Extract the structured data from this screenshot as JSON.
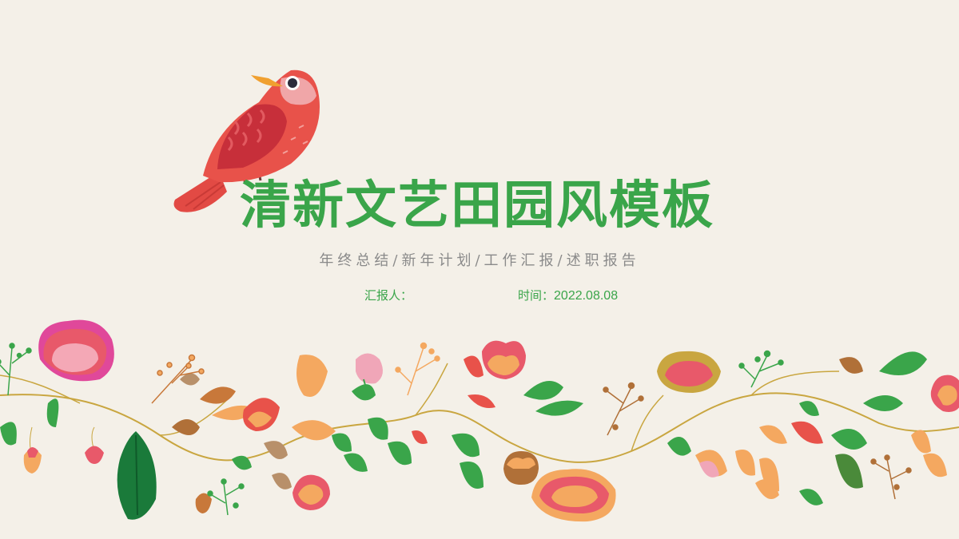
{
  "slide": {
    "title": "清新文艺田园风模板",
    "subtitle": "年终总结/新年计划/工作汇报/述职报告",
    "reporter_label": "汇报人：",
    "date_label": "时间：",
    "date_value": "2022.08.08"
  },
  "colors": {
    "background": "#f4f0e8",
    "title": "#3aa54a",
    "subtitle": "#8a8a8a",
    "bird_body": "#e8524a",
    "leaf_green": "#3aa54a",
    "petal_orange": "#f4a860",
    "petal_pink": "#e8596a"
  },
  "decorations": {
    "bird": "red-bird-illustration",
    "garland": "floral-vine-garland"
  }
}
